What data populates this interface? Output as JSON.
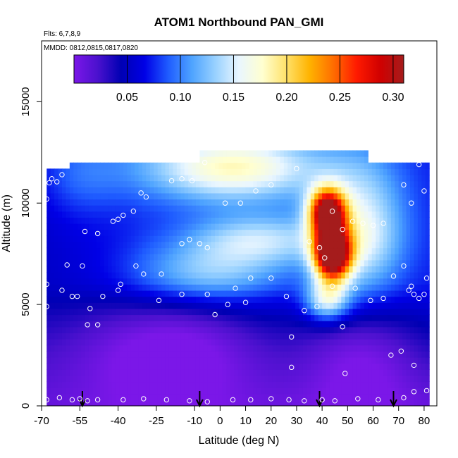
{
  "chart_data": {
    "type": "heatmap",
    "title": "ATOM1 Northbound PAN_GMI",
    "notes": {
      "flights": "Flts: 6,7,8,9",
      "dates": "MMDD: 0812,0815,0817,0820"
    },
    "xlabel": "Latitude (deg N)",
    "ylabel": "Altitude (m)",
    "xlim": [
      -70,
      85
    ],
    "ylim": [
      0,
      18000
    ],
    "x_ticks": [
      -70,
      -55,
      -40,
      -25,
      -10,
      0,
      10,
      20,
      30,
      40,
      50,
      60,
      70,
      80
    ],
    "x_tick_labels": [
      "-70",
      "-55",
      "-40",
      "-25",
      "-10",
      "0",
      "10",
      "20",
      "30",
      "40",
      "50",
      "60",
      "70",
      "80"
    ],
    "y_ticks": [
      0,
      5000,
      10000,
      15000
    ],
    "y_tick_labels": [
      "0",
      "5000",
      "10000",
      "15000"
    ],
    "colorbar": {
      "range": [
        0.0,
        0.31
      ],
      "ticks": [
        0.05,
        0.1,
        0.15,
        0.2,
        0.25,
        0.3
      ],
      "tick_labels": [
        "0.05",
        "0.10",
        "0.15",
        "0.20",
        "0.25",
        "0.30"
      ],
      "colors": [
        "#7b17e8",
        "#4b11ce",
        "#0000b3",
        "#0000e6",
        "#1f5cff",
        "#4ea3ff",
        "#98d1ff",
        "#e9f6ff",
        "#ffffd0",
        "#ffe26b",
        "#ffb300",
        "#ff6e00",
        "#ff1a00",
        "#d00000",
        "#a51c1c"
      ]
    },
    "grid": false,
    "profile_markers_x": [
      -54,
      -8,
      39,
      68
    ],
    "samples": [
      {
        "lat": -68,
        "alt": 300
      },
      {
        "lat": -63,
        "alt": 400
      },
      {
        "lat": -58,
        "alt": 300
      },
      {
        "lat": -55,
        "alt": 350
      },
      {
        "lat": -52,
        "alt": 250
      },
      {
        "lat": -48,
        "alt": 300
      },
      {
        "lat": -38,
        "alt": 300
      },
      {
        "lat": -30,
        "alt": 350
      },
      {
        "lat": -21,
        "alt": 300
      },
      {
        "lat": -12,
        "alt": 250
      },
      {
        "lat": -5,
        "alt": 200
      },
      {
        "lat": 5,
        "alt": 300
      },
      {
        "lat": 12,
        "alt": 300
      },
      {
        "lat": 20,
        "alt": 350
      },
      {
        "lat": 27,
        "alt": 300
      },
      {
        "lat": 33,
        "alt": 250
      },
      {
        "lat": 40,
        "alt": 300
      },
      {
        "lat": 45,
        "alt": 250
      },
      {
        "lat": 54,
        "alt": 350
      },
      {
        "lat": 62,
        "alt": 300
      },
      {
        "lat": 72,
        "alt": 400
      },
      {
        "lat": 76,
        "alt": 700
      },
      {
        "lat": 81,
        "alt": 750
      },
      {
        "lat": -68,
        "alt": 4900
      },
      {
        "lat": -68,
        "alt": 6000
      },
      {
        "lat": -62,
        "alt": 5700
      },
      {
        "lat": -60,
        "alt": 6950
      },
      {
        "lat": -58,
        "alt": 5400
      },
      {
        "lat": -56,
        "alt": 5400
      },
      {
        "lat": -54,
        "alt": 6900
      },
      {
        "lat": -52,
        "alt": 4000
      },
      {
        "lat": -51,
        "alt": 4800
      },
      {
        "lat": -48,
        "alt": 4000
      },
      {
        "lat": -46,
        "alt": 5400
      },
      {
        "lat": -40,
        "alt": 5700
      },
      {
        "lat": -39,
        "alt": 6000
      },
      {
        "lat": -33,
        "alt": 6900
      },
      {
        "lat": -30,
        "alt": 6500
      },
      {
        "lat": -24,
        "alt": 5200
      },
      {
        "lat": -23,
        "alt": 6500
      },
      {
        "lat": -15,
        "alt": 5500
      },
      {
        "lat": -5,
        "alt": 5500
      },
      {
        "lat": -2,
        "alt": 4500
      },
      {
        "lat": 3,
        "alt": 5000
      },
      {
        "lat": 6,
        "alt": 5800
      },
      {
        "lat": 10,
        "alt": 5100
      },
      {
        "lat": 12,
        "alt": 6300
      },
      {
        "lat": 20,
        "alt": 6300
      },
      {
        "lat": 26,
        "alt": 5400
      },
      {
        "lat": 28,
        "alt": 3400
      },
      {
        "lat": 33,
        "alt": 4700
      },
      {
        "lat": 38,
        "alt": 4900
      },
      {
        "lat": 44,
        "alt": 5900
      },
      {
        "lat": 48,
        "alt": 3900
      },
      {
        "lat": 49,
        "alt": 1600
      },
      {
        "lat": 53,
        "alt": 5800
      },
      {
        "lat": 59,
        "alt": 5200
      },
      {
        "lat": 64,
        "alt": 5300
      },
      {
        "lat": 67,
        "alt": 2500
      },
      {
        "lat": 68,
        "alt": 6400
      },
      {
        "lat": 71,
        "alt": 2700
      },
      {
        "lat": 72,
        "alt": 6900
      },
      {
        "lat": 74,
        "alt": 5700
      },
      {
        "lat": 75,
        "alt": 5900
      },
      {
        "lat": 76,
        "alt": 5500
      },
      {
        "lat": 78,
        "alt": 5300
      },
      {
        "lat": 76,
        "alt": 2000
      },
      {
        "lat": 80,
        "alt": 5500
      },
      {
        "lat": 81,
        "alt": 6300
      },
      {
        "lat": 28,
        "alt": 1900
      },
      {
        "lat": -68,
        "alt": 10200
      },
      {
        "lat": -67,
        "alt": 11000
      },
      {
        "lat": -66,
        "alt": 11200
      },
      {
        "lat": -64,
        "alt": 11050
      },
      {
        "lat": -62,
        "alt": 11400
      },
      {
        "lat": -53,
        "alt": 8600
      },
      {
        "lat": -48,
        "alt": 8500
      },
      {
        "lat": -42,
        "alt": 9100
      },
      {
        "lat": -40,
        "alt": 9200
      },
      {
        "lat": -38,
        "alt": 9400
      },
      {
        "lat": -34,
        "alt": 9600
      },
      {
        "lat": -31,
        "alt": 10500
      },
      {
        "lat": -29,
        "alt": 10300
      },
      {
        "lat": -19,
        "alt": 11100
      },
      {
        "lat": -15,
        "alt": 11200
      },
      {
        "lat": -11,
        "alt": 11100
      },
      {
        "lat": -15,
        "alt": 8000
      },
      {
        "lat": -12,
        "alt": 8200
      },
      {
        "lat": -8,
        "alt": 8000
      },
      {
        "lat": -5,
        "alt": 7800
      },
      {
        "lat": -6,
        "alt": 12000
      },
      {
        "lat": 2,
        "alt": 10000
      },
      {
        "lat": 8,
        "alt": 10000
      },
      {
        "lat": 14,
        "alt": 10600
      },
      {
        "lat": 20,
        "alt": 10900
      },
      {
        "lat": 30,
        "alt": 11700
      },
      {
        "lat": 35,
        "alt": 8100
      },
      {
        "lat": 39,
        "alt": 7800
      },
      {
        "lat": 41,
        "alt": 7300
      },
      {
        "lat": 44,
        "alt": 9600
      },
      {
        "lat": 48,
        "alt": 8700
      },
      {
        "lat": 52,
        "alt": 9100
      },
      {
        "lat": 56,
        "alt": 9000
      },
      {
        "lat": 60,
        "alt": 8900
      },
      {
        "lat": 64,
        "alt": 9000
      },
      {
        "lat": 72,
        "alt": 10900
      },
      {
        "lat": 75,
        "alt": 10000
      },
      {
        "lat": 78,
        "alt": 11900
      },
      {
        "lat": 80,
        "alt": 10600
      }
    ]
  }
}
